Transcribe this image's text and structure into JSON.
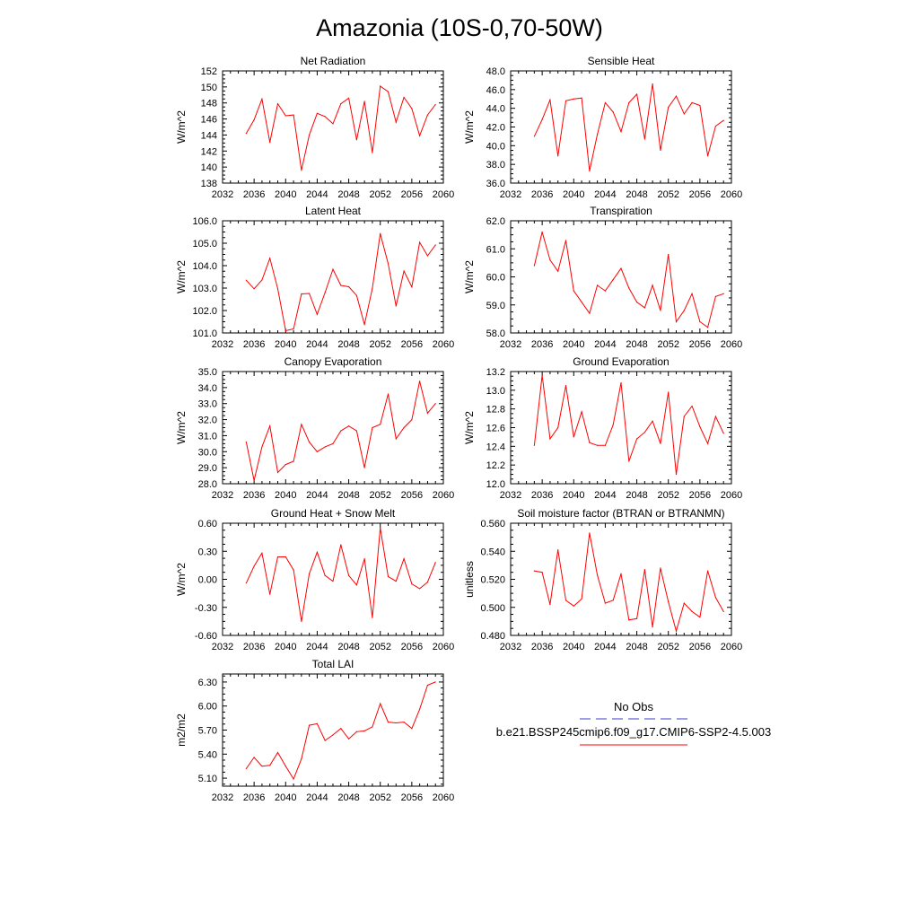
{
  "page_title": "Amazonia (10S-0,70-50W)",
  "legend": {
    "obs_label": "No Obs",
    "obs_color": "#3c3cc8",
    "model_label": "b.e21.BSSP245cmip6.f09_g17.CMIP6-SSP2-4.5.003",
    "model_color": "#ff0000"
  },
  "chart_data": [
    {
      "type": "line",
      "title": "Net Radiation",
      "ylabel": "W/m^2",
      "xlim": [
        2032,
        2060
      ],
      "ylim": [
        138,
        152
      ],
      "xticks": [
        "2032",
        "2036",
        "2040",
        "2044",
        "2048",
        "2052",
        "2056",
        "2060"
      ],
      "yticks": [
        "138",
        "140",
        "142",
        "144",
        "146",
        "148",
        "150",
        "152"
      ],
      "series": [
        {
          "name": "b.e21.BSSP245cmip6.f09_g17.CMIP6-SSP2-4.5.003",
          "x": [
            2035,
            2036,
            2037,
            2038,
            2039,
            2040,
            2041,
            2042,
            2043,
            2044,
            2045,
            2046,
            2047,
            2048,
            2049,
            2050,
            2051,
            2052,
            2053,
            2054,
            2055,
            2056,
            2057,
            2058,
            2059
          ],
          "values": [
            144.2,
            145.9,
            148.5,
            143.1,
            147.9,
            146.4,
            146.5,
            139.6,
            144.0,
            146.7,
            146.3,
            145.4,
            147.9,
            148.6,
            143.4,
            148.2,
            141.8,
            150.1,
            149.4,
            145.6,
            148.7,
            147.3,
            143.9,
            146.5,
            147.8
          ]
        }
      ]
    },
    {
      "type": "line",
      "title": "Sensible Heat",
      "ylabel": "W/m^2",
      "xlim": [
        2032,
        2060
      ],
      "ylim": [
        36,
        48
      ],
      "xticks": [
        "2032",
        "2036",
        "2040",
        "2044",
        "2048",
        "2052",
        "2056",
        "2060"
      ],
      "yticks": [
        "36.0",
        "38.0",
        "40.0",
        "42.0",
        "44.0",
        "46.0",
        "48.0"
      ],
      "series": [
        {
          "name": "b.e21.BSSP245cmip6.f09_g17.CMIP6-SSP2-4.5.003",
          "x": [
            2035,
            2036,
            2037,
            2038,
            2039,
            2040,
            2041,
            2042,
            2043,
            2044,
            2045,
            2046,
            2047,
            2048,
            2049,
            2050,
            2051,
            2052,
            2053,
            2054,
            2055,
            2056,
            2057,
            2058,
            2059
          ],
          "values": [
            41.0,
            42.8,
            44.9,
            38.9,
            44.8,
            45.0,
            45.1,
            37.3,
            41.2,
            44.6,
            43.6,
            41.5,
            44.6,
            45.5,
            40.7,
            46.6,
            39.5,
            44.1,
            45.3,
            43.4,
            44.6,
            44.3,
            38.9,
            42.1,
            42.7
          ]
        }
      ]
    },
    {
      "type": "line",
      "title": "Latent Heat",
      "ylabel": "W/m^2",
      "xlim": [
        2032,
        2060
      ],
      "ylim": [
        101,
        106
      ],
      "xticks": [
        "2032",
        "2036",
        "2040",
        "2044",
        "2048",
        "2052",
        "2056",
        "2060"
      ],
      "yticks": [
        "101.0",
        "102.0",
        "103.0",
        "104.0",
        "105.0",
        "106.0"
      ],
      "series": [
        {
          "name": "b.e21.BSSP245cmip6.f09_g17.CMIP6-SSP2-4.5.003",
          "x": [
            2035,
            2036,
            2037,
            2038,
            2039,
            2040,
            2041,
            2042,
            2043,
            2044,
            2045,
            2046,
            2047,
            2048,
            2049,
            2050,
            2051,
            2052,
            2053,
            2054,
            2055,
            2056,
            2057,
            2058,
            2059
          ],
          "values": [
            103.35,
            102.97,
            103.36,
            104.33,
            102.97,
            101.1,
            101.18,
            102.74,
            102.76,
            101.83,
            102.8,
            103.84,
            103.12,
            103.06,
            102.67,
            101.37,
            102.99,
            105.43,
            104.09,
            102.2,
            103.76,
            103.05,
            105.04,
            104.44,
            104.92
          ]
        }
      ]
    },
    {
      "type": "line",
      "title": "Transpiration",
      "ylabel": "W/m^2",
      "xlim": [
        2032,
        2060
      ],
      "ylim": [
        58,
        62
      ],
      "xticks": [
        "2032",
        "2036",
        "2040",
        "2044",
        "2048",
        "2052",
        "2056",
        "2060"
      ],
      "yticks": [
        "58.0",
        "59.0",
        "60.0",
        "61.0",
        "62.0"
      ],
      "series": [
        {
          "name": "b.e21.BSSP245cmip6.f09_g17.CMIP6-SSP2-4.5.003",
          "x": [
            2035,
            2036,
            2037,
            2038,
            2039,
            2040,
            2041,
            2042,
            2043,
            2044,
            2045,
            2046,
            2047,
            2048,
            2049,
            2050,
            2051,
            2052,
            2053,
            2054,
            2055,
            2056,
            2057,
            2058,
            2059
          ],
          "values": [
            60.4,
            61.6,
            60.6,
            60.2,
            61.3,
            59.5,
            59.1,
            58.7,
            59.7,
            59.5,
            59.9,
            60.3,
            59.6,
            59.1,
            58.9,
            59.7,
            58.8,
            60.8,
            58.4,
            58.8,
            59.4,
            58.4,
            58.2,
            59.3,
            59.4
          ]
        }
      ]
    },
    {
      "type": "line",
      "title": "Canopy Evaporation",
      "ylabel": "W/m^2",
      "xlim": [
        2032,
        2060
      ],
      "ylim": [
        28,
        35
      ],
      "xticks": [
        "2032",
        "2036",
        "2040",
        "2044",
        "2048",
        "2052",
        "2056",
        "2060"
      ],
      "yticks": [
        "28.0",
        "29.0",
        "30.0",
        "31.0",
        "32.0",
        "33.0",
        "34.0",
        "35.0"
      ],
      "series": [
        {
          "name": "b.e21.BSSP245cmip6.f09_g17.CMIP6-SSP2-4.5.003",
          "x": [
            2035,
            2036,
            2037,
            2038,
            2039,
            2040,
            2041,
            2042,
            2043,
            2044,
            2045,
            2046,
            2047,
            2048,
            2049,
            2050,
            2051,
            2052,
            2053,
            2054,
            2055,
            2056,
            2057,
            2058,
            2059
          ],
          "values": [
            30.6,
            28.2,
            30.3,
            31.6,
            28.7,
            29.2,
            29.4,
            31.7,
            30.6,
            30.0,
            30.3,
            30.5,
            31.3,
            31.6,
            31.3,
            29.0,
            31.5,
            31.7,
            33.6,
            30.8,
            31.5,
            32.0,
            34.4,
            32.4,
            33.0
          ]
        }
      ]
    },
    {
      "type": "line",
      "title": "Ground Evaporation",
      "ylabel": "W/m^2",
      "xlim": [
        2032,
        2060
      ],
      "ylim": [
        12.0,
        13.2
      ],
      "xticks": [
        "2032",
        "2036",
        "2040",
        "2044",
        "2048",
        "2052",
        "2056",
        "2060"
      ],
      "yticks": [
        "12.0",
        "12.2",
        "12.4",
        "12.6",
        "12.8",
        "13.0",
        "13.2"
      ],
      "series": [
        {
          "name": "b.e21.BSSP245cmip6.f09_g17.CMIP6-SSP2-4.5.003",
          "x": [
            2035,
            2036,
            2037,
            2038,
            2039,
            2040,
            2041,
            2042,
            2043,
            2044,
            2045,
            2046,
            2047,
            2048,
            2049,
            2050,
            2051,
            2052,
            2053,
            2054,
            2055,
            2056,
            2057,
            2058,
            2059
          ],
          "values": [
            12.41,
            13.16,
            12.48,
            12.6,
            13.05,
            12.5,
            12.77,
            12.44,
            12.41,
            12.41,
            12.63,
            13.08,
            12.24,
            12.48,
            12.55,
            12.67,
            12.43,
            12.98,
            12.1,
            12.72,
            12.83,
            12.61,
            12.43,
            12.72,
            12.54
          ]
        }
      ]
    },
    {
      "type": "line",
      "title": "Ground Heat + Snow Melt",
      "ylabel": "W/m^2",
      "xlim": [
        2032,
        2060
      ],
      "ylim": [
        -0.6,
        0.6
      ],
      "xticks": [
        "2032",
        "2036",
        "2040",
        "2044",
        "2048",
        "2052",
        "2056",
        "2060"
      ],
      "yticks": [
        "-0.60",
        "-0.30",
        "0.00",
        "0.30",
        "0.60"
      ],
      "series": [
        {
          "name": "b.e21.BSSP245cmip6.f09_g17.CMIP6-SSP2-4.5.003",
          "x": [
            2035,
            2036,
            2037,
            2038,
            2039,
            2040,
            2041,
            2042,
            2043,
            2044,
            2045,
            2046,
            2047,
            2048,
            2049,
            2050,
            2051,
            2052,
            2053,
            2054,
            2055,
            2056,
            2057,
            2058,
            2059
          ],
          "values": [
            -0.04,
            0.14,
            0.28,
            -0.16,
            0.24,
            0.24,
            0.1,
            -0.45,
            0.06,
            0.29,
            0.04,
            -0.02,
            0.37,
            0.04,
            -0.06,
            0.22,
            -0.41,
            0.55,
            0.03,
            -0.02,
            0.22,
            -0.05,
            -0.1,
            -0.03,
            0.18
          ]
        }
      ]
    },
    {
      "type": "line",
      "title": "Soil moisture factor (BTRAN or BTRANMN)",
      "ylabel": "unitless",
      "xlim": [
        2032,
        2060
      ],
      "ylim": [
        0.48,
        0.56
      ],
      "xticks": [
        "2032",
        "2036",
        "2040",
        "2044",
        "2048",
        "2052",
        "2056",
        "2060"
      ],
      "yticks": [
        "0.480",
        "0.500",
        "0.520",
        "0.540",
        "0.560"
      ],
      "series": [
        {
          "name": "b.e21.BSSP245cmip6.f09_g17.CMIP6-SSP2-4.5.003",
          "x": [
            2035,
            2036,
            2037,
            2038,
            2039,
            2040,
            2041,
            2042,
            2043,
            2044,
            2045,
            2046,
            2047,
            2048,
            2049,
            2050,
            2051,
            2052,
            2053,
            2054,
            2055,
            2056,
            2057,
            2058,
            2059
          ],
          "values": [
            0.526,
            0.525,
            0.502,
            0.541,
            0.505,
            0.501,
            0.506,
            0.553,
            0.523,
            0.503,
            0.505,
            0.524,
            0.491,
            0.492,
            0.527,
            0.486,
            0.528,
            0.504,
            0.483,
            0.503,
            0.497,
            0.493,
            0.526,
            0.507,
            0.497
          ]
        }
      ]
    },
    {
      "type": "line",
      "title": "Total LAI",
      "ylabel": "m2/m2",
      "xlim": [
        2032,
        2060
      ],
      "ylim": [
        5.0,
        6.4
      ],
      "xticks": [
        "2032",
        "2036",
        "2040",
        "2044",
        "2048",
        "2052",
        "2056",
        "2060"
      ],
      "yticks": [
        "5.10",
        "5.40",
        "5.70",
        "6.00",
        "6.30"
      ],
      "ytick_values": [
        5.1,
        5.4,
        5.7,
        6.0,
        6.3
      ],
      "series": [
        {
          "name": "b.e21.BSSP245cmip6.f09_g17.CMIP6-SSP2-4.5.003",
          "x": [
            2035,
            2036,
            2037,
            2038,
            2039,
            2040,
            2041,
            2042,
            2043,
            2044,
            2045,
            2046,
            2047,
            2048,
            2049,
            2050,
            2051,
            2052,
            2053,
            2054,
            2055,
            2056,
            2057,
            2058,
            2059
          ],
          "values": [
            5.22,
            5.36,
            5.25,
            5.26,
            5.42,
            5.25,
            5.09,
            5.34,
            5.76,
            5.78,
            5.57,
            5.64,
            5.72,
            5.59,
            5.68,
            5.69,
            5.74,
            6.03,
            5.8,
            5.79,
            5.8,
            5.72,
            5.96,
            6.26,
            6.3
          ]
        }
      ]
    }
  ]
}
